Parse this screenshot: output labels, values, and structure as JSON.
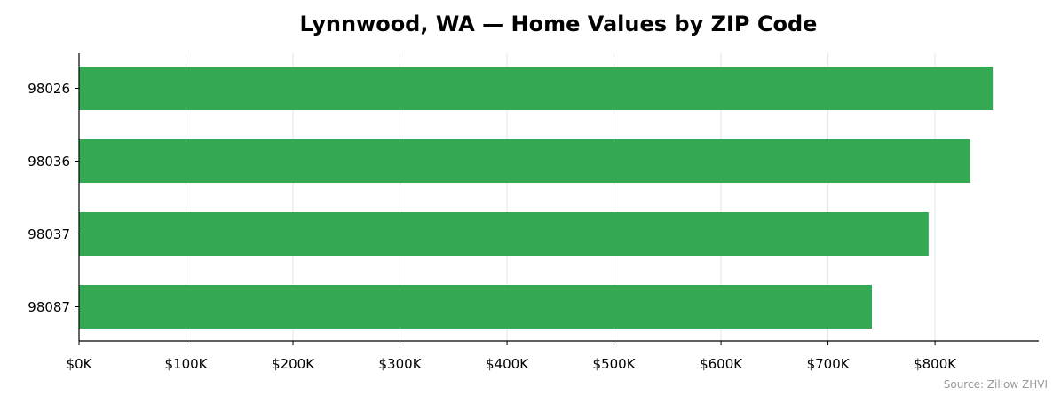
{
  "chart_data": {
    "type": "bar",
    "orientation": "horizontal",
    "title": "Lynnwood, WA — Home Values by ZIP Code",
    "xlabel": "",
    "ylabel": "",
    "categories": [
      "98026",
      "98036",
      "98037",
      "98087"
    ],
    "values": [
      854000,
      833000,
      794000,
      741000
    ],
    "xlim": [
      0,
      897000
    ],
    "x_ticks": [
      0,
      100000,
      200000,
      300000,
      400000,
      500000,
      600000,
      700000,
      800000
    ],
    "x_tick_labels": [
      "$0K",
      "$100K",
      "$200K",
      "$300K",
      "$400K",
      "$500K",
      "$600K",
      "$700K",
      "$800K"
    ],
    "grid": "vertical",
    "bar_color": "#34a853",
    "source": "Source: Zillow ZHVI"
  }
}
